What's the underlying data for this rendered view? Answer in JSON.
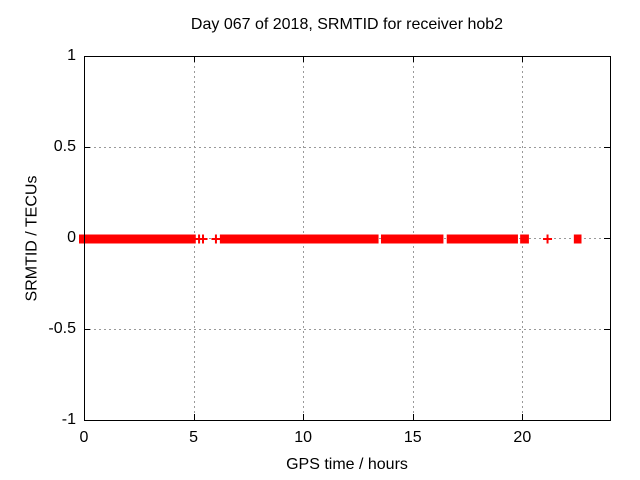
{
  "chart_data": {
    "type": "scatter",
    "title": "Day 067 of 2018, SRMTID for receiver hob2",
    "xlabel": "GPS time / hours",
    "ylabel": "SRMTID / TECUs",
    "xlim": [
      0,
      24
    ],
    "ylim": [
      -1,
      1
    ],
    "xticks": [
      0,
      5,
      10,
      15,
      20
    ],
    "xtick_labels": [
      "0",
      "5",
      "10",
      "15",
      "20"
    ],
    "yticks": [
      1,
      0.5,
      0,
      -0.5,
      -1
    ],
    "ytick_labels": [
      "1",
      "0.5",
      "0",
      "-0.5",
      "-1"
    ],
    "grid": true,
    "legend_position": "none",
    "marker": "plus",
    "marker_size_px": 9,
    "band_thickness_px": 9,
    "colors": {
      "marker": "#ff0000",
      "grid": "#999999",
      "frame": "#000000",
      "background": "#ffffff",
      "text": "#000000"
    },
    "series": [
      {
        "name": "SRMTID",
        "color": "#ff0000",
        "y_value": 0,
        "dense_segments_x": [
          [
            0.0,
            5.1
          ],
          [
            6.2,
            13.44
          ],
          [
            13.55,
            16.4
          ],
          [
            16.55,
            19.8
          ],
          [
            19.9,
            20.3
          ],
          [
            22.35,
            22.7
          ]
        ],
        "isolated_x": [
          5.25,
          5.43,
          6.02,
          21.15
        ]
      }
    ]
  }
}
